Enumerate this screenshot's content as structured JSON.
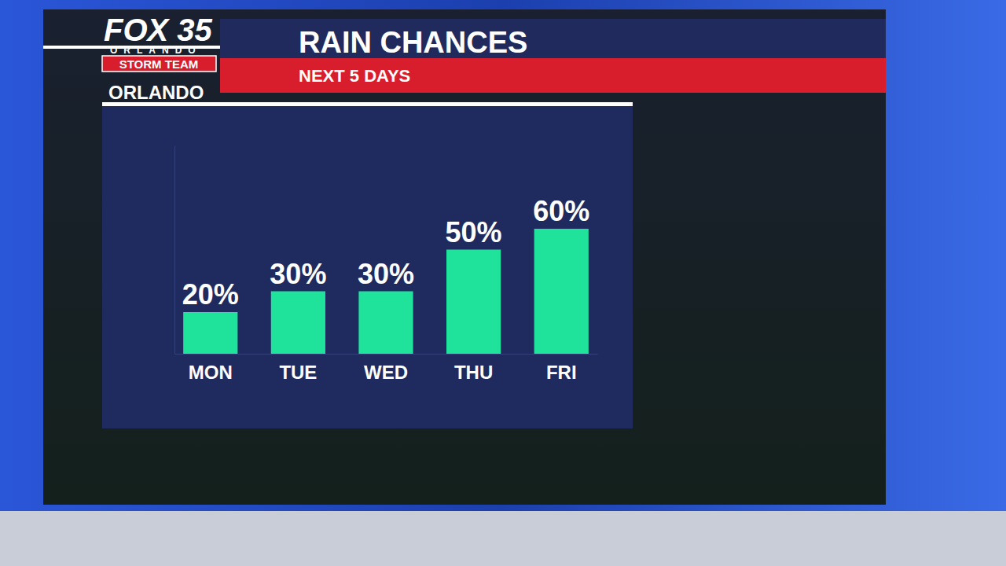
{
  "chart_data": {
    "type": "bar",
    "title": "RAIN CHANCES",
    "subtitle": "NEXT 5 DAYS",
    "location": "ORLANDO",
    "brand": {
      "name": "FOX 35",
      "city": "ORLANDO",
      "team": "STORM TEAM"
    },
    "categories": [
      "MON",
      "TUE",
      "WED",
      "THU",
      "FRI"
    ],
    "values": [
      20,
      30,
      30,
      50,
      60
    ],
    "value_labels": [
      "20%",
      "30%",
      "30%",
      "50%",
      "60%"
    ],
    "color": "#1fe39b",
    "ylim": [
      0,
      100
    ],
    "data_labels": true,
    "tick_labels": "x",
    "grid": false
  }
}
